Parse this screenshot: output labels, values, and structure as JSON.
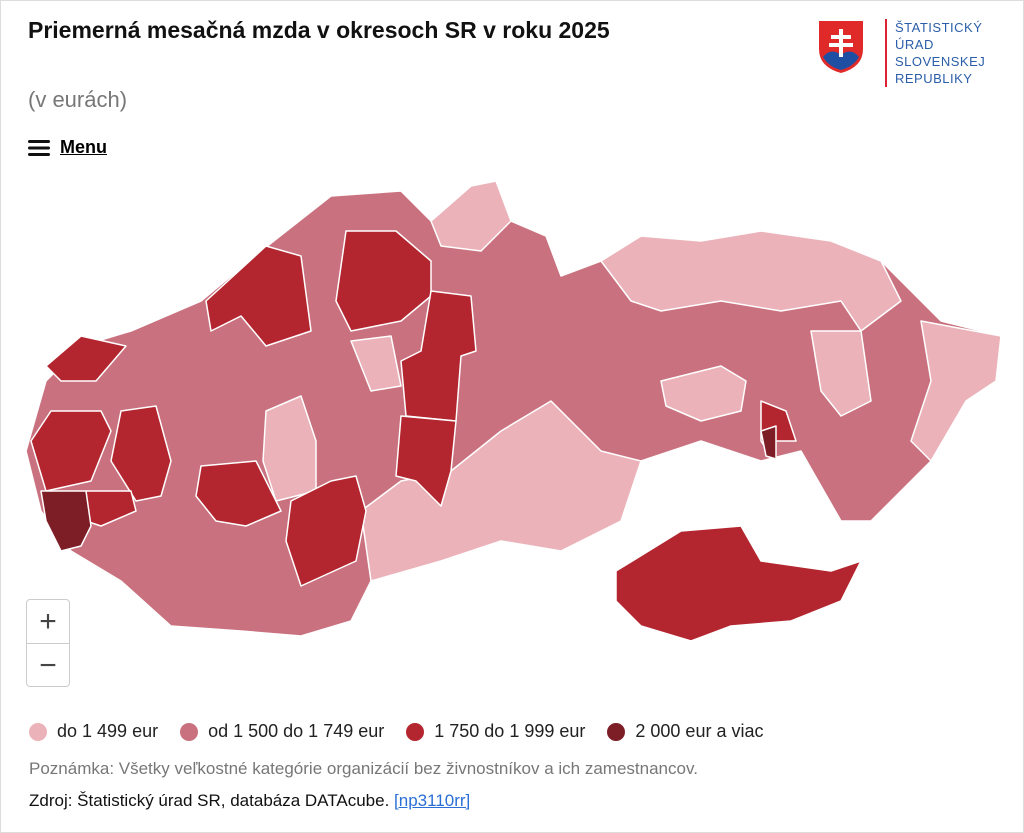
{
  "header": {
    "title": "Priemerná mesačná mzda v okresoch SR v roku 2025",
    "subtitle": "(v eurách)",
    "menu": "Menu",
    "logo": [
      "ŠTATISTICKÝ",
      "ÚRAD",
      "SLOVENSKEJ",
      "REPUBLIKY"
    ]
  },
  "controls": {
    "zoom_in": "+",
    "zoom_out": "−"
  },
  "legend": [
    {
      "label": "do 1 499 eur",
      "color": "#ebb3b9"
    },
    {
      "label": "od 1 500 do 1 749 eur",
      "color": "#c9717e"
    },
    {
      "label": "1 750 do 1 999 eur",
      "color": "#b3262f"
    },
    {
      "label": "2 000 eur a viac",
      "color": "#7d1e27"
    }
  ],
  "footer": {
    "note": "Poznámka: Všetky veľkostné kategórie organizácií bez živnostníkov a ich zamestnancov.",
    "source": "Zdroj: Štatistický úrad SR, databáza DATAcube.",
    "link": "[np3110rr]"
  }
}
